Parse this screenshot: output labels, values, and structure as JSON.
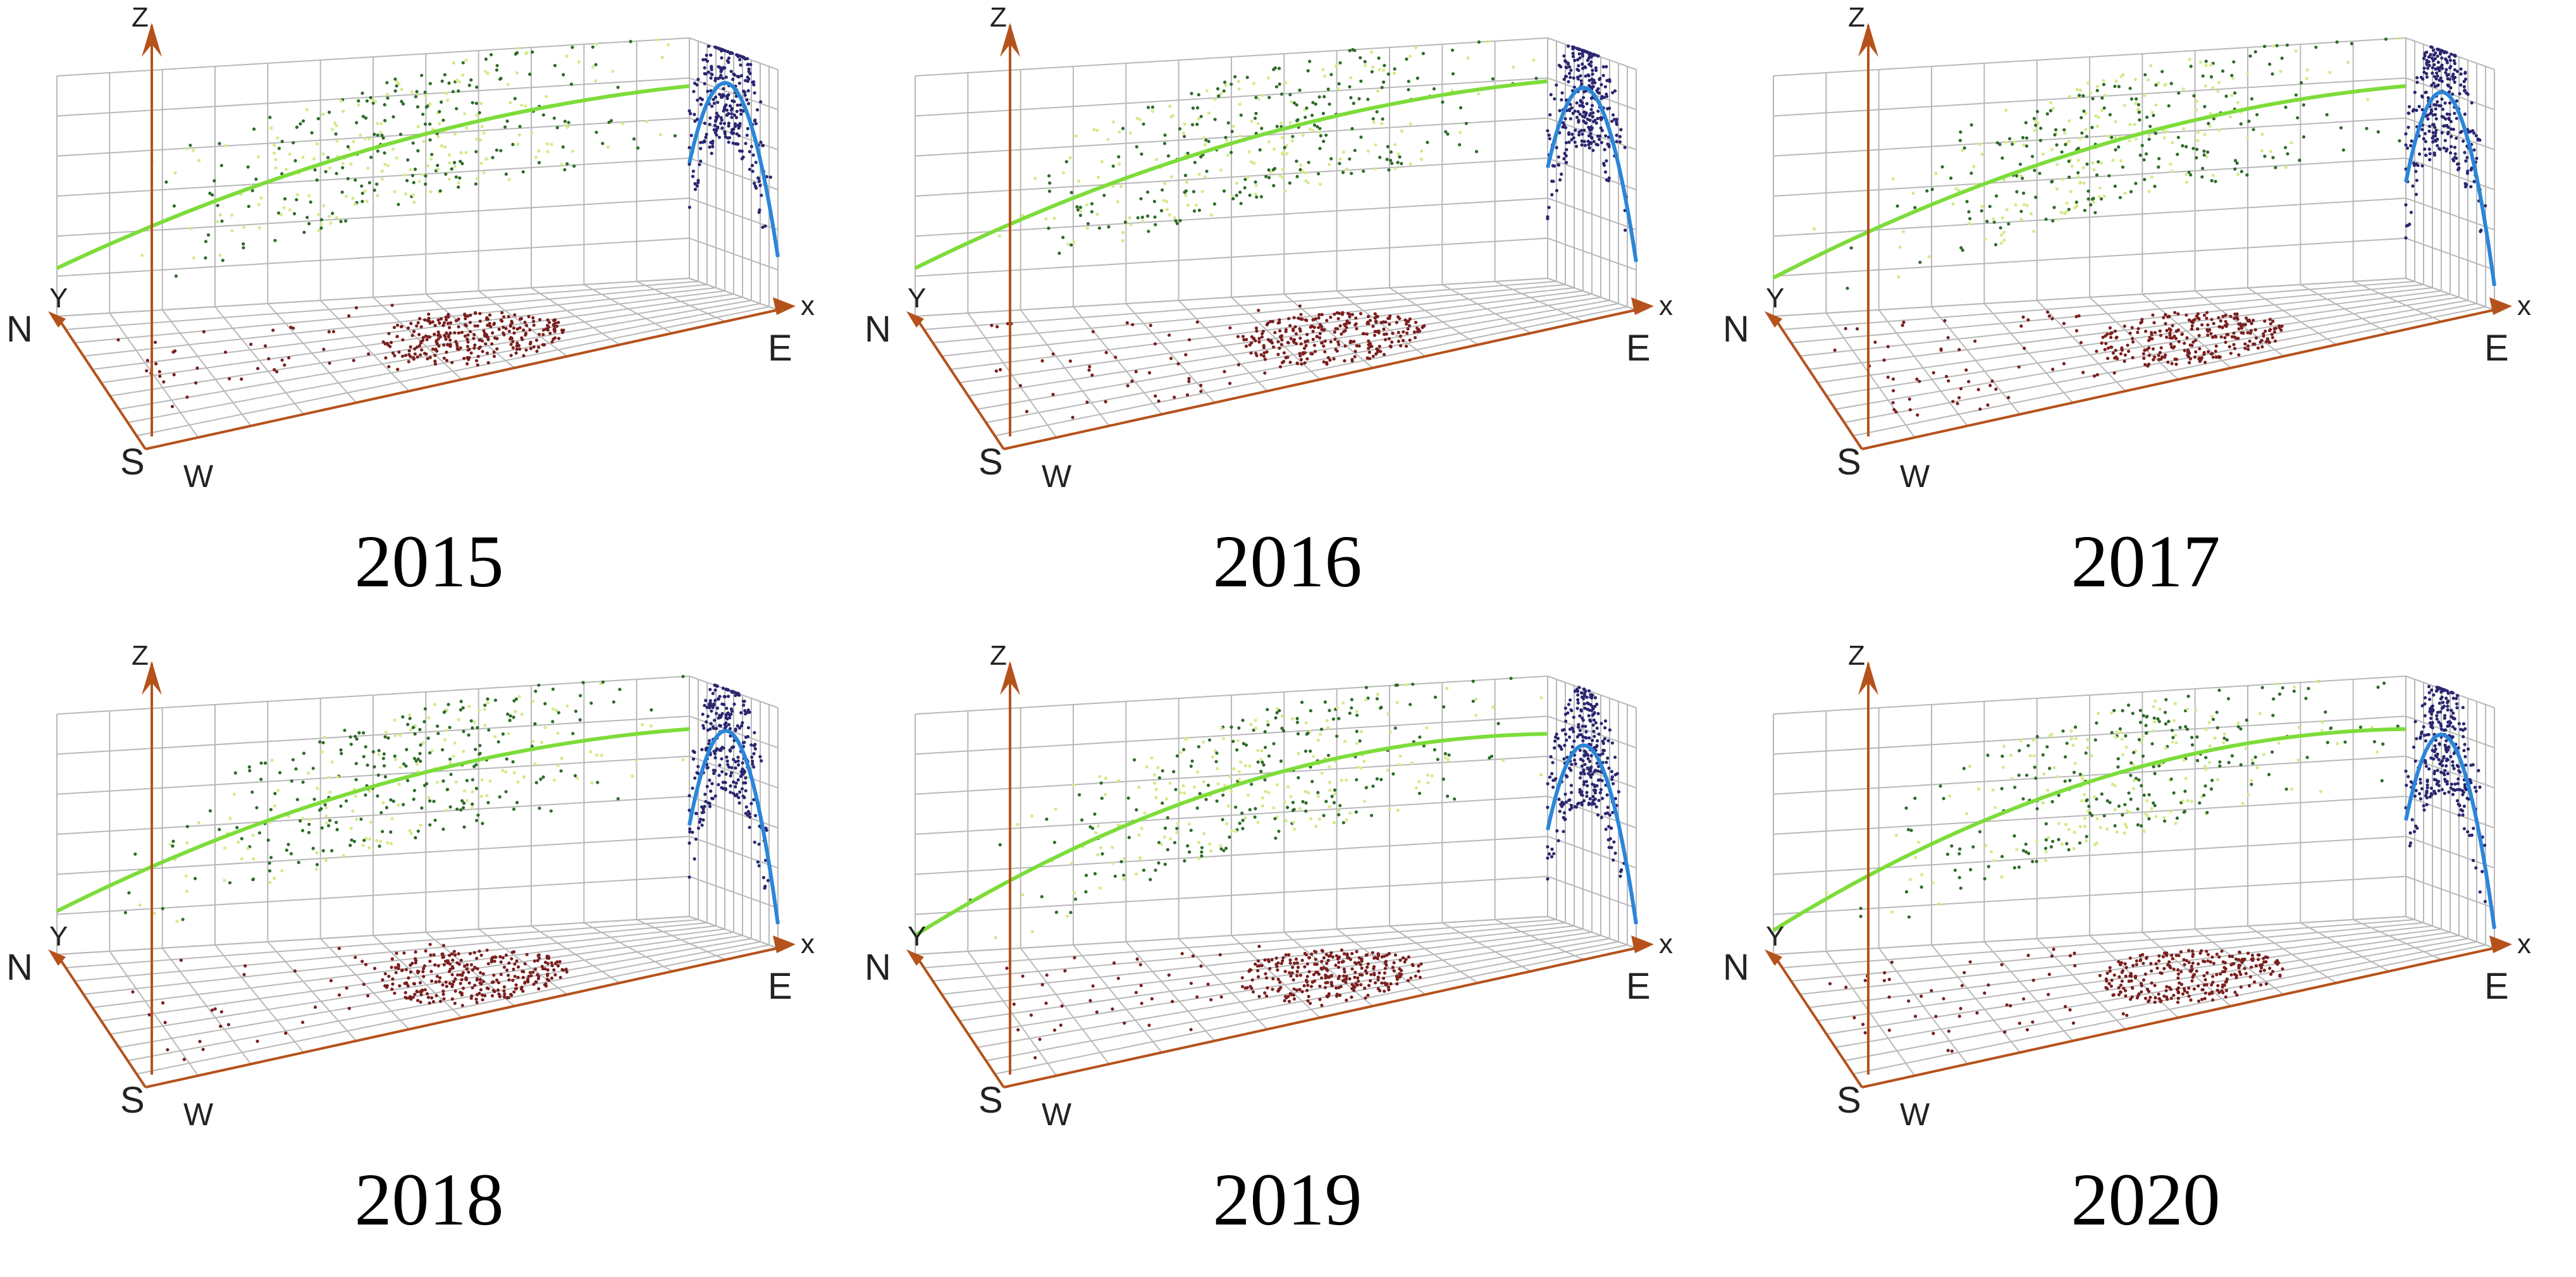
{
  "figure": {
    "description_labels": {
      "z_axis": "Z",
      "x_axis": "x",
      "y_axis": "Y",
      "north": "N",
      "south": "S",
      "east": "E",
      "west": "W"
    }
  },
  "colors": {
    "grid": "#b8b8b8",
    "axis": "#b5521b",
    "trend_ew": "#7ddc3a",
    "trend_ns": "#2a86d9",
    "pts_ew": "#2f6b2a",
    "pts_ew_light": "#d6ea8a",
    "pts_ns": "#2a2670",
    "pts_floor": "#7a1f1f"
  },
  "chart_data": [
    {
      "type": "scatter",
      "title": "2015",
      "xlabel": "x",
      "ylabel": "Y",
      "zlabel": "Z",
      "trend_ew": [
        0.2,
        0.62,
        0.8
      ],
      "trend_ns": [
        0.48,
        0.86,
        0.22
      ],
      "seed": 15
    },
    {
      "type": "scatter",
      "title": "2016",
      "xlabel": "x",
      "ylabel": "Y",
      "zlabel": "Z",
      "trend_ew": [
        0.2,
        0.64,
        0.82
      ],
      "trend_ns": [
        0.46,
        0.84,
        0.2
      ],
      "seed": 16
    },
    {
      "type": "scatter",
      "title": "2017",
      "xlabel": "x",
      "ylabel": "Y",
      "zlabel": "Z",
      "trend_ew": [
        0.16,
        0.62,
        0.8
      ],
      "trend_ns": [
        0.4,
        0.82,
        0.1
      ],
      "seed": 17
    },
    {
      "type": "scatter",
      "title": "2018",
      "xlabel": "x",
      "ylabel": "Y",
      "zlabel": "Z",
      "trend_ew": [
        0.18,
        0.62,
        0.78
      ],
      "trend_ns": [
        0.38,
        0.82,
        0.1
      ],
      "seed": 18
    },
    {
      "type": "scatter",
      "title": "2019",
      "xlabel": "x",
      "ylabel": "Y",
      "zlabel": "Z",
      "trend_ew": [
        0.08,
        0.62,
        0.76
      ],
      "trend_ns": [
        0.36,
        0.76,
        0.1
      ],
      "seed": 19
    },
    {
      "type": "scatter",
      "title": "2020",
      "xlabel": "x",
      "ylabel": "Y",
      "zlabel": "Z",
      "trend_ew": [
        0.1,
        0.64,
        0.78
      ],
      "trend_ns": [
        0.4,
        0.8,
        0.08
      ],
      "seed": 20
    }
  ]
}
